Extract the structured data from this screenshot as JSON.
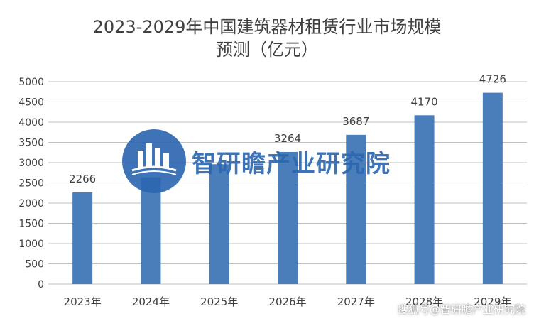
{
  "chart_data": {
    "type": "bar",
    "title_line1": "2023-2029年中国建筑器材租赁行业市场规模",
    "title_line2": "预测（亿元）",
    "categories": [
      "2023年",
      "2024年",
      "2025年",
      "2026年",
      "2027年",
      "2028年",
      "2029年"
    ],
    "values": [
      2266,
      2636,
      2960,
      3264,
      3687,
      4170,
      4726
    ],
    "data_labels": [
      "2266",
      "",
      "",
      "3264",
      "3687",
      "4170",
      "4726"
    ],
    "ylim": [
      0,
      5000
    ],
    "yticks": [
      "0",
      "500",
      "1000",
      "1500",
      "2000",
      "2500",
      "3000",
      "3500",
      "4000",
      "4500",
      "5000"
    ],
    "grid": true,
    "bar_color": "#4a7ebb",
    "axis_color": "#bfbfbf"
  },
  "watermark": {
    "text": "智研瞻产业研究院",
    "color": "#2a66b0"
  },
  "footer": {
    "credit": "搜狐号@智研瞻产业研究院"
  }
}
